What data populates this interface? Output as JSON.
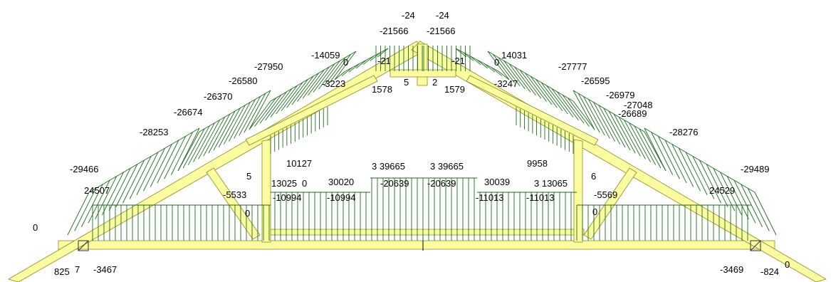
{
  "colors": {
    "member_fill": "#fbfba0",
    "member_stroke": "#8a8a20",
    "diagram": "#1e6e1e",
    "background": "#ffffff"
  },
  "labels": {
    "apex_left_top": "-24",
    "apex_right_top": "-24",
    "apex_left_force": "-21566",
    "apex_right_force": "-21566",
    "rafter_l_1": "-14059",
    "rafter_l_2": "-27950",
    "rafter_l_3": "-26580",
    "rafter_l_4": "-26370",
    "rafter_l_5": "-26674",
    "rafter_l_6": "-28253",
    "rafter_l_7": "-29466",
    "rafter_l_8": "24507",
    "rafter_l_9": "-3223",
    "rafter_l_10": "1578",
    "rafter_l_small_0": "0",
    "rafter_l_small_21": "-21",
    "rafter_r_1": "14031",
    "rafter_r_2": "-27777",
    "rafter_r_3": "-26595",
    "rafter_r_4": "-26979",
    "rafter_r_5": "-27048",
    "rafter_r_6": "-26689",
    "rafter_r_7": "-28276",
    "rafter_r_8": "-29489",
    "rafter_r_9": "24529",
    "rafter_r_10": "-3247",
    "rafter_r_11": "1579",
    "rafter_r_small_0": "0",
    "rafter_r_small_21": "-21",
    "center_5": "5",
    "center_2": "2",
    "web_l_10127": "10127",
    "web_l_5": "5",
    "web_l_13025": "13025",
    "web_l_0a": "0",
    "web_l_30020": "30020",
    "web_l_39665": "3 39665",
    "web_r_39665": "3 39665",
    "web_r_30039": "30039",
    "web_r_9958": "9958",
    "web_r_13065": "3 13065",
    "web_r_6": "6",
    "tie_l_5533": "-5533",
    "tie_l_10994a": "-10994",
    "tie_l_10994b": "-10994",
    "tie_c_20639a": "-20639",
    "tie_c_20639b": "-20639",
    "tie_r_11013a": "-11013",
    "tie_r_11013b": "-11013",
    "tie_r_5569": "-5569",
    "tie_l_0": "0",
    "tie_r_0": "0",
    "eave_l_0": "0",
    "support_l_825": "825",
    "support_l_7": "7",
    "support_l_3467": "-3467",
    "support_r_3469": "-3469",
    "support_r_824": "-824",
    "support_r_0": "0"
  }
}
